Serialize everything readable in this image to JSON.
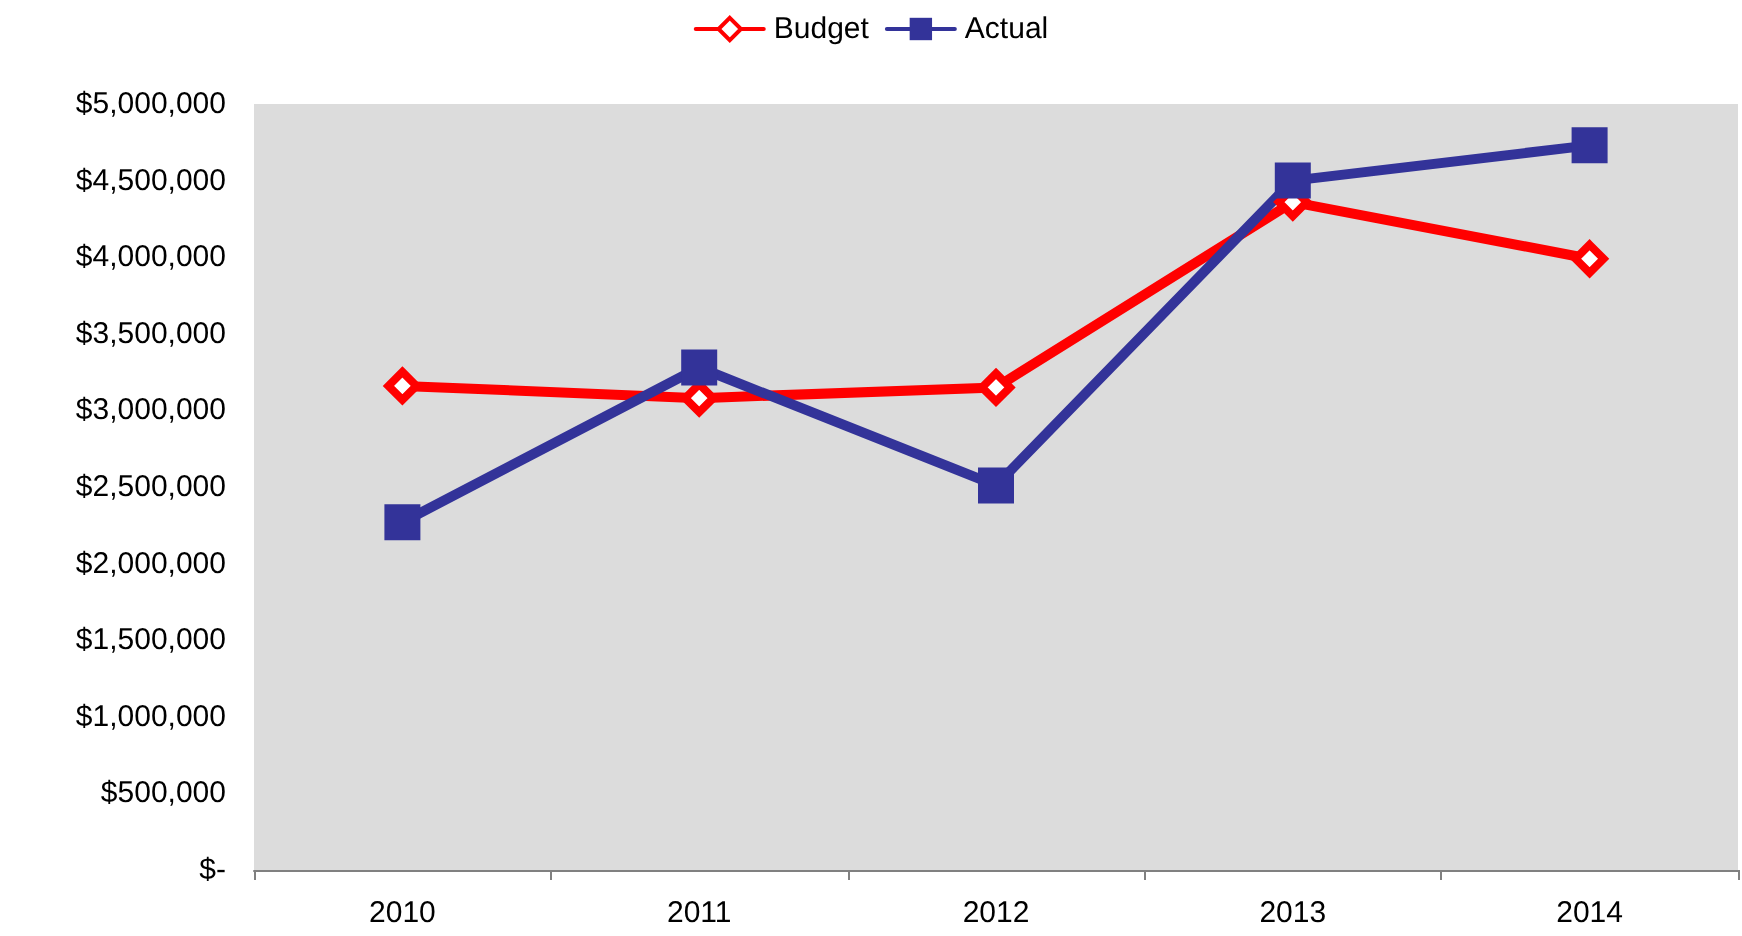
{
  "chart_data": {
    "type": "line",
    "categories": [
      "2010",
      "2011",
      "2012",
      "2013",
      "2014"
    ],
    "series": [
      {
        "name": "Budget",
        "color": "#ff0000",
        "marker": "diamond",
        "values": [
          3160000,
          3080000,
          3150000,
          4360000,
          3990000
        ]
      },
      {
        "name": "Actual",
        "color": "#333399",
        "marker": "square",
        "values": [
          2270000,
          3280000,
          2510000,
          4500000,
          4730000
        ]
      }
    ],
    "ylim": [
      0,
      5000000
    ],
    "yticks": [
      {
        "value": 0,
        "label": "$-"
      },
      {
        "value": 500000,
        "label": "$500,000"
      },
      {
        "value": 1000000,
        "label": "$1,000,000"
      },
      {
        "value": 1500000,
        "label": "$1,500,000"
      },
      {
        "value": 2000000,
        "label": "$2,000,000"
      },
      {
        "value": 2500000,
        "label": "$2,500,000"
      },
      {
        "value": 3000000,
        "label": "$3,000,000"
      },
      {
        "value": 3500000,
        "label": "$3,500,000"
      },
      {
        "value": 4000000,
        "label": "$4,000,000"
      },
      {
        "value": 4500000,
        "label": "$4,500,000"
      },
      {
        "value": 5000000,
        "label": "$5,000,000"
      }
    ],
    "grid": false,
    "legend": "top",
    "line_style": "solid"
  }
}
